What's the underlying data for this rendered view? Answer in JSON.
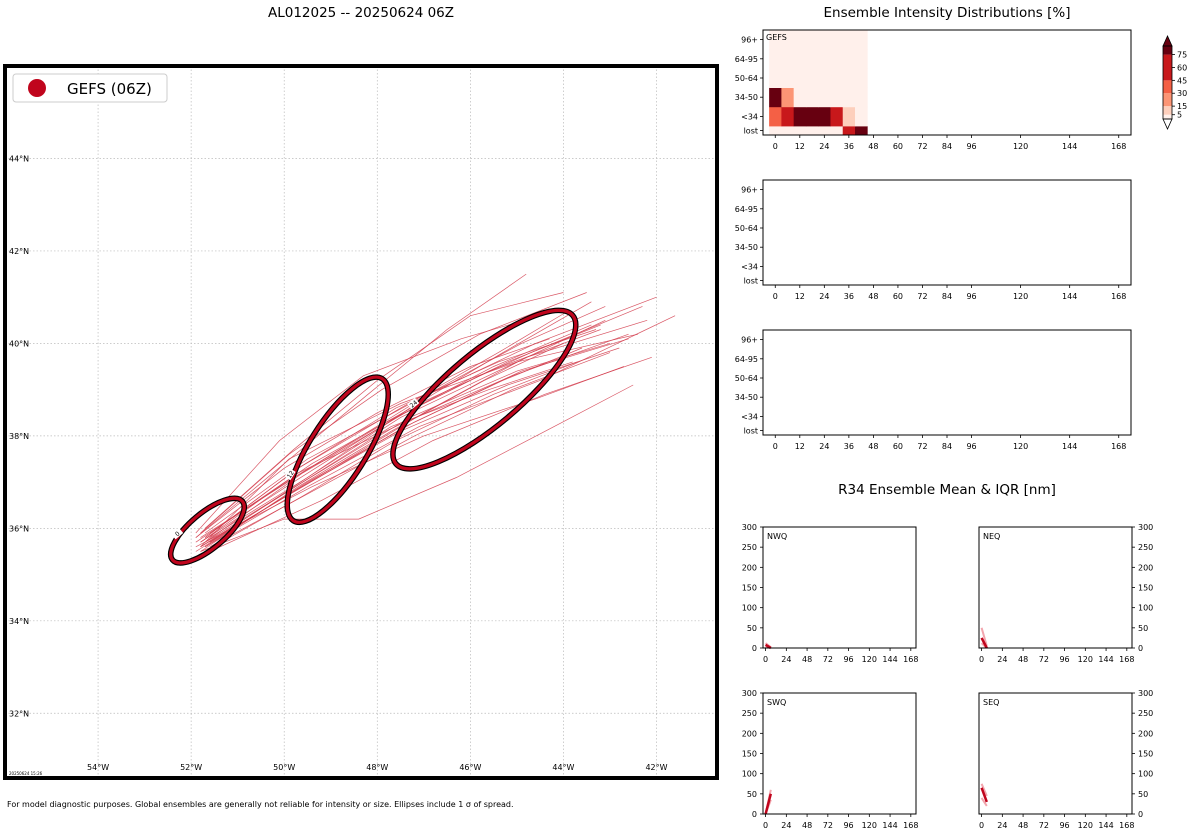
{
  "figure": {
    "title": "AL012025 -- 20250624 06Z",
    "footnote": "For model diagnostic purposes. Global ensembles are generally not reliable for intensity or size. Ellipses include 1 σ of spread.",
    "stamp": "20250624 15:26"
  },
  "colors": {
    "accent": "#c0051d",
    "track": "#d23a4a",
    "grid": "#bbbbbb",
    "scale": [
      "#fff0eb",
      "#fdcfbc",
      "#fc9575",
      "#f46045",
      "#c8181b",
      "#670010"
    ]
  },
  "chart_data": [
    {
      "id": "track_map",
      "type": "scatter",
      "title": "AL012025 -- 20250624 06Z",
      "legend": {
        "label": "GEFS (06Z)",
        "placement": "top-left"
      },
      "xlim": [
        -56,
        -40.7
      ],
      "ylim": [
        30.6,
        46
      ],
      "x_ticks": [
        -54,
        -52,
        -50,
        -48,
        -46,
        -44,
        -42
      ],
      "x_ticklabels": [
        "54°W",
        "52°W",
        "50°W",
        "48°W",
        "46°W",
        "44°W",
        "42°W"
      ],
      "y_ticks": [
        32,
        34,
        36,
        38,
        40,
        42,
        44
      ],
      "y_ticklabels": [
        "32°N",
        "34°N",
        "36°N",
        "38°N",
        "40°N",
        "42°N",
        "44°N"
      ],
      "grid": true,
      "tracks": [
        [
          [
            -51.8,
            35.6
          ],
          [
            -49.6,
            37.0
          ],
          [
            -47.3,
            38.4
          ],
          [
            -45.0,
            39.4
          ],
          [
            -43.0,
            40.0
          ]
        ],
        [
          [
            -51.7,
            35.8
          ],
          [
            -49.7,
            37.3
          ],
          [
            -47.6,
            38.6
          ],
          [
            -45.4,
            39.6
          ],
          [
            -43.3,
            40.3
          ]
        ],
        [
          [
            -51.9,
            35.5
          ],
          [
            -49.8,
            36.8
          ],
          [
            -47.5,
            38.1
          ],
          [
            -45.2,
            39.1
          ],
          [
            -42.8,
            39.9
          ]
        ],
        [
          [
            -51.6,
            35.7
          ],
          [
            -49.3,
            37.1
          ],
          [
            -47.0,
            38.5
          ],
          [
            -44.8,
            39.7
          ],
          [
            -42.2,
            40.5
          ]
        ],
        [
          [
            -51.8,
            35.9
          ],
          [
            -49.9,
            37.6
          ],
          [
            -47.9,
            39.0
          ],
          [
            -45.8,
            40.2
          ],
          [
            -43.5,
            41.1
          ]
        ],
        [
          [
            -51.7,
            35.6
          ],
          [
            -49.5,
            36.9
          ],
          [
            -47.1,
            38.2
          ],
          [
            -44.5,
            39.2
          ],
          [
            -41.6,
            40.6
          ]
        ],
        [
          [
            -51.9,
            35.8
          ],
          [
            -50.0,
            37.4
          ],
          [
            -48.2,
            38.9
          ],
          [
            -46.5,
            40.3
          ],
          [
            -44.8,
            41.5
          ]
        ],
        [
          [
            -51.6,
            35.5
          ],
          [
            -49.2,
            36.6
          ],
          [
            -46.8,
            37.9
          ],
          [
            -44.4,
            38.9
          ],
          [
            -42.1,
            39.7
          ]
        ],
        [
          [
            -51.8,
            35.7
          ],
          [
            -49.7,
            37.2
          ],
          [
            -47.4,
            38.3
          ],
          [
            -45.1,
            39.3
          ],
          [
            -42.6,
            40.2
          ]
        ],
        [
          [
            -51.7,
            36.0
          ],
          [
            -49.8,
            37.7
          ],
          [
            -48.0,
            39.2
          ],
          [
            -46.0,
            40.6
          ],
          [
            -44.0,
            41.1
          ]
        ],
        [
          [
            -51.9,
            35.6
          ],
          [
            -49.4,
            36.9
          ],
          [
            -47.0,
            38.0
          ],
          [
            -44.6,
            38.8
          ],
          [
            -42.7,
            39.5
          ]
        ],
        [
          [
            -51.6,
            35.8
          ],
          [
            -49.5,
            37.1
          ],
          [
            -47.3,
            38.6
          ],
          [
            -45.3,
            39.8
          ],
          [
            -43.4,
            40.9
          ]
        ],
        [
          [
            -51.8,
            35.5
          ],
          [
            -50.0,
            36.2
          ],
          [
            -48.4,
            36.2
          ],
          [
            -46.3,
            37.1
          ],
          [
            -44.2,
            38.2
          ],
          [
            -42.5,
            39.1
          ]
        ],
        [
          [
            -51.7,
            35.7
          ],
          [
            -49.6,
            37.0
          ],
          [
            -47.7,
            38.2
          ],
          [
            -45.6,
            39.0
          ],
          [
            -43.8,
            39.6
          ]
        ],
        [
          [
            -51.8,
            35.6
          ],
          [
            -49.9,
            37.5
          ],
          [
            -47.5,
            38.7
          ],
          [
            -45.0,
            39.6
          ],
          [
            -42.4,
            40.2
          ]
        ],
        [
          [
            -51.7,
            35.9
          ],
          [
            -49.5,
            37.5
          ],
          [
            -47.1,
            38.8
          ],
          [
            -44.9,
            40.0
          ],
          [
            -43.1,
            40.8
          ]
        ],
        [
          [
            -51.9,
            35.7
          ],
          [
            -49.8,
            37.1
          ],
          [
            -47.8,
            38.3
          ],
          [
            -45.6,
            39.4
          ],
          [
            -43.2,
            40.3
          ]
        ],
        [
          [
            -51.6,
            35.6
          ],
          [
            -49.4,
            36.8
          ],
          [
            -47.2,
            38.0
          ],
          [
            -45.1,
            39.0
          ],
          [
            -43.0,
            39.8
          ]
        ],
        [
          [
            -51.8,
            35.8
          ],
          [
            -49.3,
            37.4
          ],
          [
            -46.9,
            38.9
          ],
          [
            -44.6,
            40.0
          ],
          [
            -42.0,
            41.0
          ]
        ],
        [
          [
            -51.7,
            35.5
          ],
          [
            -49.6,
            36.7
          ],
          [
            -47.6,
            37.9
          ],
          [
            -45.5,
            38.9
          ],
          [
            -43.7,
            39.6
          ]
        ],
        [
          [
            -51.9,
            35.9
          ],
          [
            -50.1,
            37.9
          ],
          [
            -48.3,
            39.3
          ],
          [
            -46.2,
            40.1
          ],
          [
            -44.5,
            40.6
          ]
        ],
        [
          [
            -51.6,
            35.7
          ],
          [
            -49.5,
            37.1
          ],
          [
            -47.5,
            38.4
          ],
          [
            -45.2,
            39.5
          ],
          [
            -43.1,
            40.5
          ]
        ],
        [
          [
            -51.8,
            35.6
          ],
          [
            -49.6,
            36.9
          ],
          [
            -47.4,
            38.2
          ],
          [
            -45.3,
            39.2
          ],
          [
            -43.6,
            39.9
          ]
        ],
        [
          [
            -51.7,
            35.8
          ],
          [
            -49.7,
            37.3
          ],
          [
            -47.5,
            38.6
          ],
          [
            -45.4,
            39.8
          ],
          [
            -43.9,
            40.7
          ]
        ],
        [
          [
            -51.8,
            35.7
          ],
          [
            -49.8,
            37.0
          ],
          [
            -47.6,
            38.4
          ],
          [
            -45.5,
            39.5
          ],
          [
            -43.4,
            40.4
          ]
        ],
        [
          [
            -51.7,
            35.6
          ],
          [
            -49.5,
            37.0
          ],
          [
            -47.2,
            38.3
          ],
          [
            -44.9,
            39.4
          ],
          [
            -42.6,
            40.1
          ]
        ],
        [
          [
            -51.9,
            35.8
          ],
          [
            -50.0,
            37.3
          ],
          [
            -48.0,
            38.5
          ],
          [
            -46.0,
            39.5
          ],
          [
            -44.3,
            40.1
          ]
        ],
        [
          [
            -51.6,
            35.9
          ],
          [
            -49.4,
            37.4
          ],
          [
            -47.1,
            38.7
          ],
          [
            -44.7,
            39.8
          ],
          [
            -42.3,
            40.8
          ]
        ],
        [
          [
            -51.8,
            35.5
          ],
          [
            -49.7,
            36.9
          ],
          [
            -47.7,
            38.1
          ],
          [
            -45.7,
            39.2
          ],
          [
            -44.0,
            40.0
          ]
        ],
        [
          [
            -51.7,
            35.7
          ],
          [
            -49.6,
            37.2
          ],
          [
            -47.4,
            38.5
          ],
          [
            -45.2,
            39.6
          ],
          [
            -43.2,
            40.4
          ]
        ]
      ],
      "ellipses": [
        {
          "label": "0",
          "center": [
            -51.65,
            35.95
          ],
          "semi_major_deg": 0.98,
          "semi_minor_deg": 0.38,
          "angle_deg": 40
        },
        {
          "label": "12",
          "center": [
            -48.85,
            37.7
          ],
          "semi_major_deg": 1.8,
          "semi_minor_deg": 0.61,
          "angle_deg": 58
        },
        {
          "label": "24",
          "center": [
            -45.7,
            39.0
          ],
          "semi_major_deg": 2.48,
          "semi_minor_deg": 0.78,
          "angle_deg": 40
        }
      ]
    },
    {
      "id": "intensity_gefs",
      "type": "heatmap",
      "title": "Ensemble Intensity Distributions [%]",
      "label": "GEFS",
      "xlim": [
        -6,
        174
      ],
      "x_ticks": [
        0,
        12,
        24,
        36,
        48,
        60,
        72,
        84,
        96,
        120,
        144,
        168
      ],
      "y_categories": [
        "lost",
        "<34",
        "34-50",
        "50-64",
        "64-95",
        "96+"
      ],
      "cell_hours": [
        0,
        6,
        12,
        18,
        24,
        30,
        36,
        42
      ],
      "values": [
        [
          0,
          0,
          0,
          0,
          0,
          0,
          45,
          100
        ],
        [
          30,
          70,
          100,
          100,
          100,
          60,
          10,
          0
        ],
        [
          100,
          20,
          0,
          0,
          0,
          0,
          0,
          0
        ],
        [
          0,
          0,
          0,
          0,
          0,
          0,
          0,
          0
        ],
        [
          0,
          0,
          0,
          0,
          0,
          0,
          0,
          0
        ],
        [
          0,
          0,
          0,
          0,
          0,
          0,
          0,
          0
        ]
      ]
    },
    {
      "id": "intensity_empty_2",
      "type": "heatmap",
      "label": "",
      "xlim": [
        -6,
        174
      ],
      "x_ticks": [
        0,
        12,
        24,
        36,
        48,
        60,
        72,
        84,
        96,
        120,
        144,
        168
      ],
      "y_categories": [
        "lost",
        "<34",
        "34-50",
        "50-64",
        "64-95",
        "96+"
      ],
      "values": []
    },
    {
      "id": "intensity_empty_3",
      "type": "heatmap",
      "label": "",
      "xlim": [
        -6,
        174
      ],
      "x_ticks": [
        0,
        12,
        24,
        36,
        48,
        60,
        72,
        84,
        96,
        120,
        144,
        168
      ],
      "y_categories": [
        "lost",
        "<34",
        "34-50",
        "50-64",
        "64-95",
        "96+"
      ],
      "values": []
    },
    {
      "id": "colorbar",
      "type": "heatmap",
      "ticks": [
        5,
        15,
        30,
        45,
        60,
        75
      ],
      "ylim": [
        0,
        85
      ]
    },
    {
      "id": "r34",
      "type": "line",
      "title": "R34 Ensemble Mean & IQR [nm]",
      "xlim": [
        -3,
        174
      ],
      "ylim": [
        0,
        300
      ],
      "x_ticks": [
        0,
        24,
        48,
        72,
        96,
        120,
        144,
        168
      ],
      "y_ticks": [
        0,
        50,
        100,
        150,
        200,
        250,
        300
      ],
      "panels": [
        {
          "label": "NWQ",
          "mean": [
            [
              0,
              8
            ],
            [
              6,
              0
            ]
          ],
          "q25": [
            [
              0,
              4
            ],
            [
              6,
              0
            ]
          ],
          "q75": [
            [
              0,
              12
            ],
            [
              6,
              2
            ]
          ]
        },
        {
          "label": "NEQ",
          "mean": [
            [
              0,
              25
            ],
            [
              6,
              0
            ]
          ],
          "q25": [
            [
              0,
              12
            ],
            [
              6,
              0
            ]
          ],
          "q75": [
            [
              0,
              50
            ],
            [
              6,
              5
            ]
          ]
        },
        {
          "label": "SWQ",
          "mean": [
            [
              0,
              0
            ],
            [
              6,
              50
            ]
          ],
          "q25": [
            [
              0,
              0
            ],
            [
              6,
              35
            ]
          ],
          "q75": [
            [
              0,
              0
            ],
            [
              6,
              60
            ]
          ]
        },
        {
          "label": "SEQ",
          "mean": [
            [
              0,
              65
            ],
            [
              6,
              30
            ]
          ],
          "q25": [
            [
              0,
              40
            ],
            [
              6,
              20
            ]
          ],
          "q75": [
            [
              0,
              75
            ],
            [
              6,
              45
            ]
          ]
        }
      ]
    }
  ]
}
